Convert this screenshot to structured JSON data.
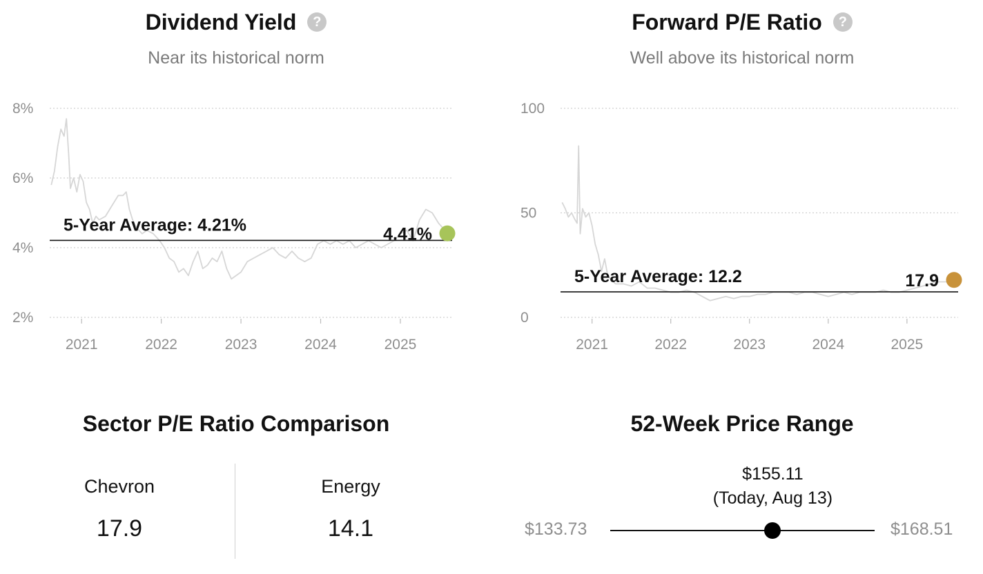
{
  "dividend_panel": {
    "title": "Dividend Yield",
    "help_icon": "question-circle-icon",
    "subtitle": "Near its historical norm",
    "avg_label": "5-Year Average: 4.21%",
    "current_label": "4.41%",
    "dot_color": "#a7c45a"
  },
  "pe_panel": {
    "title": "Forward P/E Ratio",
    "help_icon": "question-circle-icon",
    "subtitle": "Well above its historical norm",
    "avg_label": "5-Year Average: 12.2",
    "current_label": "17.9",
    "dot_color": "#c8923a"
  },
  "sector": {
    "title": "Sector P/E Ratio Comparison",
    "items": [
      {
        "name": "Chevron",
        "value": "17.9"
      },
      {
        "name": "Energy",
        "value": "14.1"
      }
    ]
  },
  "price_range": {
    "title": "52-Week Price Range",
    "current_price": "$155.11",
    "current_note": "(Today, Aug 13)",
    "low": "$133.73",
    "high": "$168.51",
    "low_value": 133.73,
    "high_value": 168.51,
    "current_value": 155.11
  },
  "chart_data": [
    {
      "type": "line",
      "title": "Dividend Yield",
      "subtitle": "Near its historical norm",
      "unit": "%",
      "x_ticks": [
        "2021",
        "2022",
        "2023",
        "2024",
        "2025"
      ],
      "y_ticks": [
        "2%",
        "4%",
        "6%",
        "8%"
      ],
      "xlim": [
        2020.6,
        2025.65
      ],
      "ylim": [
        2,
        8
      ],
      "grid": true,
      "average": 4.21,
      "current": 4.41,
      "series": [
        {
          "x": [
            2020.62,
            2020.66,
            2020.7,
            2020.74,
            2020.78,
            2020.81,
            2020.84,
            2020.86,
            2020.9,
            2020.94,
            2020.98,
            2021.02,
            2021.06,
            2021.1,
            2021.14,
            2021.18,
            2021.22,
            2021.3,
            2021.38,
            2021.46,
            2021.52,
            2021.56,
            2021.6,
            2021.64,
            2021.68,
            2021.72,
            2021.76,
            2021.82,
            2021.9,
            2021.98,
            2022.04,
            2022.1,
            2022.16,
            2022.22,
            2022.28,
            2022.34,
            2022.4,
            2022.46,
            2022.52,
            2022.58,
            2022.64,
            2022.7,
            2022.76,
            2022.82,
            2022.88,
            2022.94,
            2023.0,
            2023.08,
            2023.16,
            2023.24,
            2023.32,
            2023.4,
            2023.48,
            2023.56,
            2023.64,
            2023.72,
            2023.8,
            2023.88,
            2023.96,
            2024.04,
            2024.12,
            2024.2,
            2024.28,
            2024.36,
            2024.44,
            2024.52,
            2024.6,
            2024.68,
            2024.76,
            2024.84,
            2024.92,
            2025.0,
            2025.08,
            2025.16,
            2025.24,
            2025.32,
            2025.4,
            2025.48,
            2025.56,
            2025.62
          ],
          "y": [
            5.8,
            6.2,
            6.9,
            7.4,
            7.2,
            7.7,
            6.6,
            5.7,
            6.0,
            5.6,
            6.1,
            5.9,
            5.3,
            5.1,
            4.7,
            4.9,
            4.8,
            4.9,
            5.2,
            5.5,
            5.5,
            5.6,
            5.1,
            4.8,
            4.6,
            4.5,
            4.4,
            4.5,
            4.4,
            4.2,
            4.0,
            3.7,
            3.6,
            3.3,
            3.4,
            3.2,
            3.6,
            3.9,
            3.4,
            3.5,
            3.7,
            3.6,
            3.9,
            3.4,
            3.1,
            3.2,
            3.3,
            3.6,
            3.7,
            3.8,
            3.9,
            4.0,
            3.8,
            3.7,
            3.9,
            3.7,
            3.6,
            3.7,
            4.1,
            4.2,
            4.1,
            4.2,
            4.1,
            4.2,
            4.0,
            4.1,
            4.2,
            4.1,
            4.0,
            4.1,
            4.2,
            4.4,
            4.5,
            4.2,
            4.8,
            5.1,
            5.0,
            4.7,
            4.5,
            4.41
          ]
        }
      ]
    },
    {
      "type": "line",
      "title": "Forward P/E Ratio",
      "subtitle": "Well above its historical norm",
      "x_ticks": [
        "2021",
        "2022",
        "2023",
        "2024",
        "2025"
      ],
      "y_ticks": [
        "0",
        "50",
        "100"
      ],
      "xlim": [
        2020.6,
        2025.65
      ],
      "ylim": [
        0,
        100
      ],
      "grid": true,
      "average": 12.2,
      "current": 17.9,
      "series": [
        {
          "x": [
            2020.62,
            2020.66,
            2020.7,
            2020.74,
            2020.78,
            2020.81,
            2020.83,
            2020.85,
            2020.88,
            2020.92,
            2020.96,
            2021.0,
            2021.04,
            2021.08,
            2021.12,
            2021.16,
            2021.2,
            2021.24,
            2021.3,
            2021.4,
            2021.5,
            2021.6,
            2021.7,
            2021.8,
            2021.9,
            2022.0,
            2022.1,
            2022.2,
            2022.3,
            2022.4,
            2022.5,
            2022.6,
            2022.7,
            2022.8,
            2022.9,
            2023.0,
            2023.1,
            2023.2,
            2023.3,
            2023.4,
            2023.5,
            2023.6,
            2023.7,
            2023.8,
            2023.9,
            2024.0,
            2024.1,
            2024.2,
            2024.3,
            2024.4,
            2024.5,
            2024.6,
            2024.7,
            2024.8,
            2024.9,
            2025.0,
            2025.1,
            2025.2,
            2025.3,
            2025.4,
            2025.5,
            2025.62
          ],
          "y": [
            55,
            52,
            48,
            50,
            47,
            45,
            82,
            40,
            52,
            48,
            50,
            44,
            35,
            30,
            22,
            28,
            20,
            18,
            16,
            16,
            15,
            17,
            14,
            14,
            13,
            12,
            12,
            13,
            12,
            10,
            8,
            9,
            10,
            9,
            10,
            10,
            11,
            11,
            12,
            12,
            12,
            11,
            12,
            12,
            11,
            10,
            11,
            12,
            11,
            12,
            12,
            12,
            13,
            12,
            12,
            13,
            14,
            15,
            16,
            17,
            17,
            17.9
          ]
        }
      ]
    }
  ]
}
